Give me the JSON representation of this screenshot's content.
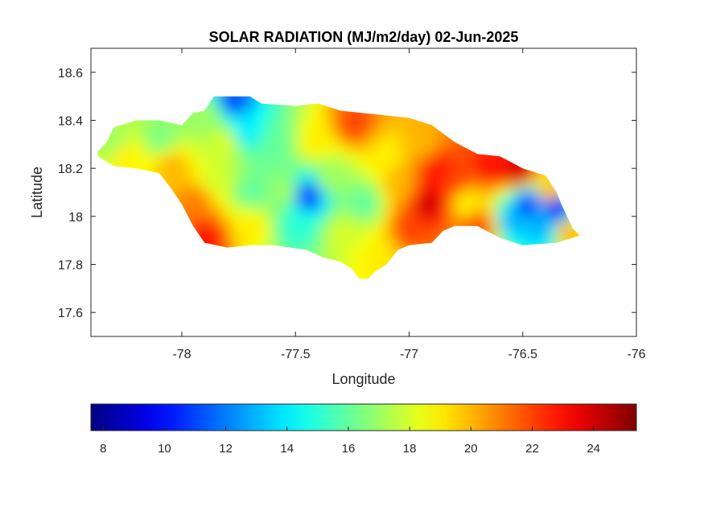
{
  "chart_data": {
    "type": "heatmap",
    "title": "SOLAR RADIATION (MJ/m2/day) 02-Jun-2025",
    "xlabel": "Longitude",
    "ylabel": "Latitude",
    "xlim": [
      -78.4,
      -76
    ],
    "ylim": [
      17.5,
      18.7
    ],
    "xticks": [
      -78,
      -77.5,
      -77,
      -76.5,
      -76
    ],
    "xtick_labels": [
      "-78",
      "-77.5",
      "-77",
      "-76.5",
      "-76"
    ],
    "yticks": [
      17.6,
      17.8,
      18,
      18.2,
      18.4,
      18.6
    ],
    "ytick_labels": [
      "17.6",
      "17.8",
      "18",
      "18.2",
      "18.4",
      "18.6"
    ],
    "colormap": "jet",
    "colorbar": {
      "location": "bottom",
      "range": [
        7.6,
        25.4
      ],
      "ticks": [
        8,
        10,
        12,
        14,
        16,
        18,
        20,
        22,
        24
      ],
      "tick_labels": [
        "8",
        "10",
        "12",
        "14",
        "16",
        "18",
        "20",
        "22",
        "24"
      ]
    },
    "grid": false,
    "field_points": [
      {
        "lon": -78.3,
        "lat": 18.3,
        "value": 17
      },
      {
        "lon": -78.25,
        "lat": 18.25,
        "value": 19
      },
      {
        "lon": -78.1,
        "lat": 18.32,
        "value": 16.5
      },
      {
        "lon": -78.05,
        "lat": 18.2,
        "value": 20
      },
      {
        "lon": -77.95,
        "lat": 18.05,
        "value": 21
      },
      {
        "lon": -77.9,
        "lat": 17.9,
        "value": 23
      },
      {
        "lon": -77.85,
        "lat": 18.15,
        "value": 18
      },
      {
        "lon": -77.9,
        "lat": 18.42,
        "value": 17
      },
      {
        "lon": -77.82,
        "lat": 18.3,
        "value": 18
      },
      {
        "lon": -77.78,
        "lat": 18.48,
        "value": 11
      },
      {
        "lon": -77.72,
        "lat": 18.35,
        "value": 14
      },
      {
        "lon": -77.7,
        "lat": 18.1,
        "value": 16
      },
      {
        "lon": -77.7,
        "lat": 17.95,
        "value": 19
      },
      {
        "lon": -77.6,
        "lat": 18.3,
        "value": 16
      },
      {
        "lon": -77.55,
        "lat": 18.1,
        "value": 17
      },
      {
        "lon": -77.5,
        "lat": 17.95,
        "value": 15
      },
      {
        "lon": -77.45,
        "lat": 18.08,
        "value": 11
      },
      {
        "lon": -77.42,
        "lat": 18.3,
        "value": 19
      },
      {
        "lon": -77.35,
        "lat": 18.15,
        "value": 17
      },
      {
        "lon": -77.3,
        "lat": 17.92,
        "value": 18
      },
      {
        "lon": -77.25,
        "lat": 18.38,
        "value": 22
      },
      {
        "lon": -77.2,
        "lat": 18.05,
        "value": 16
      },
      {
        "lon": -77.15,
        "lat": 17.82,
        "value": 19
      },
      {
        "lon": -77.1,
        "lat": 18.25,
        "value": 19
      },
      {
        "lon": -77.05,
        "lat": 18.12,
        "value": 20
      },
      {
        "lon": -77.0,
        "lat": 17.95,
        "value": 22
      },
      {
        "lon": -76.95,
        "lat": 18.3,
        "value": 20
      },
      {
        "lon": -76.92,
        "lat": 18.05,
        "value": 24
      },
      {
        "lon": -76.88,
        "lat": 18.18,
        "value": 23
      },
      {
        "lon": -76.8,
        "lat": 18.15,
        "value": 22
      },
      {
        "lon": -76.75,
        "lat": 18.05,
        "value": 19
      },
      {
        "lon": -76.7,
        "lat": 17.95,
        "value": 22
      },
      {
        "lon": -76.65,
        "lat": 18.2,
        "value": 23
      },
      {
        "lon": -76.55,
        "lat": 17.98,
        "value": 13
      },
      {
        "lon": -76.52,
        "lat": 18.18,
        "value": 24
      },
      {
        "lon": -76.48,
        "lat": 18.05,
        "value": 11
      },
      {
        "lon": -76.42,
        "lat": 17.95,
        "value": 13
      },
      {
        "lon": -76.38,
        "lat": 18.1,
        "value": 20
      },
      {
        "lon": -76.35,
        "lat": 18.03,
        "value": 10
      },
      {
        "lon": -76.3,
        "lat": 17.93,
        "value": 20
      }
    ],
    "region_outline": [
      [
        -78.37,
        18.27
      ],
      [
        -78.33,
        18.31
      ],
      [
        -78.3,
        18.37
      ],
      [
        -78.2,
        18.4
      ],
      [
        -78.1,
        18.4
      ],
      [
        -78.0,
        18.38
      ],
      [
        -77.95,
        18.43
      ],
      [
        -77.9,
        18.44
      ],
      [
        -77.86,
        18.5
      ],
      [
        -77.7,
        18.5
      ],
      [
        -77.65,
        18.47
      ],
      [
        -77.5,
        18.46
      ],
      [
        -77.4,
        18.47
      ],
      [
        -77.3,
        18.44
      ],
      [
        -77.2,
        18.43
      ],
      [
        -77.0,
        18.41
      ],
      [
        -76.9,
        18.38
      ],
      [
        -76.8,
        18.31
      ],
      [
        -76.7,
        18.26
      ],
      [
        -76.6,
        18.25
      ],
      [
        -76.5,
        18.2
      ],
      [
        -76.4,
        18.17
      ],
      [
        -76.35,
        18.1
      ],
      [
        -76.33,
        18.05
      ],
      [
        -76.28,
        17.95
      ],
      [
        -76.25,
        17.92
      ],
      [
        -76.35,
        17.89
      ],
      [
        -76.5,
        17.88
      ],
      [
        -76.6,
        17.91
      ],
      [
        -76.7,
        17.96
      ],
      [
        -76.8,
        17.96
      ],
      [
        -76.85,
        17.94
      ],
      [
        -76.9,
        17.89
      ],
      [
        -77.0,
        17.88
      ],
      [
        -77.05,
        17.86
      ],
      [
        -77.1,
        17.8
      ],
      [
        -77.15,
        17.77
      ],
      [
        -77.18,
        17.74
      ],
      [
        -77.22,
        17.74
      ],
      [
        -77.25,
        17.78
      ],
      [
        -77.3,
        17.81
      ],
      [
        -77.38,
        17.83
      ],
      [
        -77.45,
        17.86
      ],
      [
        -77.6,
        17.88
      ],
      [
        -77.7,
        17.88
      ],
      [
        -77.8,
        17.87
      ],
      [
        -77.9,
        17.89
      ],
      [
        -77.95,
        17.96
      ],
      [
        -78.0,
        18.05
      ],
      [
        -78.05,
        18.12
      ],
      [
        -78.1,
        18.18
      ],
      [
        -78.2,
        18.2
      ],
      [
        -78.3,
        18.21
      ],
      [
        -78.37,
        18.25
      ]
    ]
  }
}
